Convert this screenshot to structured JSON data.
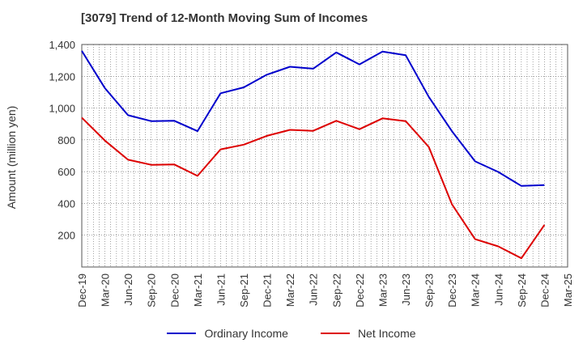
{
  "title": "[3079]  Trend of 12-Month Moving Sum of Incomes",
  "chart_data": {
    "type": "line",
    "title": "[3079]  Trend of 12-Month Moving Sum of Incomes",
    "xlabel": "",
    "ylabel": "Amount (million yen)",
    "ylim": [
      0,
      1400
    ],
    "yticks": [
      "200",
      "400",
      "600",
      "800",
      "1,000",
      "1,200",
      "1,400"
    ],
    "ytick_values": [
      200,
      400,
      600,
      800,
      1000,
      1200,
      1400
    ],
    "categories": [
      "Dec-19",
      "Mar-20",
      "Jun-20",
      "Sep-20",
      "Dec-20",
      "Mar-21",
      "Jun-21",
      "Sep-21",
      "Dec-21",
      "Mar-22",
      "Jun-22",
      "Sep-22",
      "Dec-22",
      "Mar-23",
      "Jun-23",
      "Sep-23",
      "Dec-23",
      "Mar-24",
      "Jun-24",
      "Sep-24",
      "Dec-24",
      "Mar-25"
    ],
    "grid": true,
    "legend_position": "bottom",
    "series": [
      {
        "name": "Ordinary Income",
        "color": "#0000cc",
        "values": [
          1360,
          1125,
          955,
          918,
          920,
          855,
          1093,
          1130,
          1210,
          1260,
          1248,
          1350,
          1275,
          1355,
          1333,
          1070,
          855,
          665,
          598,
          510,
          515,
          null
        ]
      },
      {
        "name": "Net Income",
        "color": "#dd0000",
        "values": [
          940,
          795,
          675,
          643,
          645,
          573,
          740,
          770,
          825,
          863,
          857,
          920,
          867,
          935,
          918,
          755,
          395,
          175,
          130,
          55,
          265,
          null
        ]
      }
    ]
  }
}
